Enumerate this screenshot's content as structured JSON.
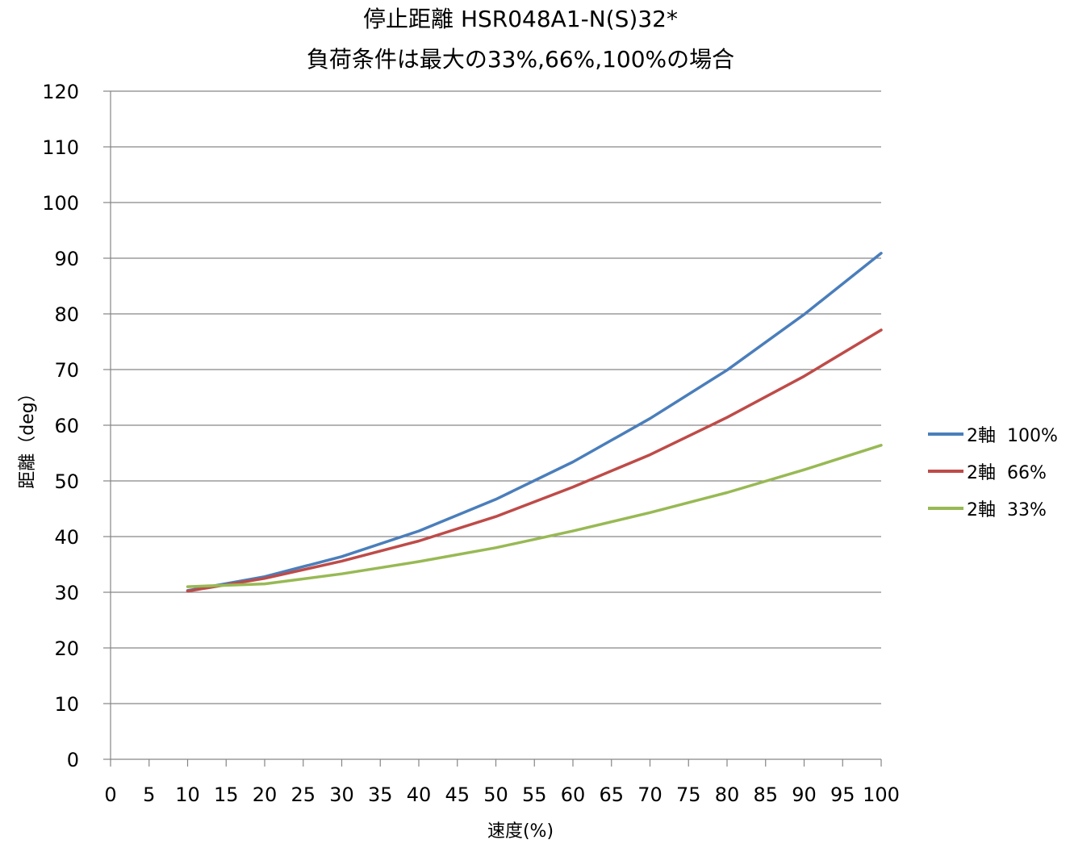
{
  "chart_data": {
    "type": "line",
    "title": "停止距離 HSR048A1-N(S)32*",
    "subtitle": "負荷条件は最大の33%,66%,100%の場合",
    "xlabel": "速度(%)",
    "ylabel": "距離（deg）",
    "xlim": [
      0,
      100
    ],
    "ylim": [
      0,
      120
    ],
    "x_ticks": [
      0,
      5,
      10,
      15,
      20,
      25,
      30,
      35,
      40,
      45,
      50,
      55,
      60,
      65,
      70,
      75,
      80,
      85,
      90,
      95,
      100
    ],
    "y_ticks": [
      0,
      10,
      20,
      30,
      40,
      50,
      60,
      70,
      80,
      90,
      100,
      110,
      120
    ],
    "grid": "horizontal",
    "legend_position": "right",
    "x": [
      10,
      20,
      30,
      40,
      50,
      60,
      70,
      80,
      90,
      100
    ],
    "series": [
      {
        "name": "2軸  100%",
        "color": "#4a7ebb",
        "values": [
          30.3,
          32.8,
          36.4,
          41.0,
          46.7,
          53.4,
          61.2,
          69.9,
          79.9,
          90.9
        ]
      },
      {
        "name": "2軸  66%",
        "color": "#be4b48",
        "values": [
          30.2,
          32.5,
          35.6,
          39.2,
          43.6,
          48.9,
          54.7,
          61.4,
          68.8,
          77.1
        ]
      },
      {
        "name": "2軸  33%",
        "color": "#98b954",
        "values": [
          31.0,
          31.5,
          33.3,
          35.5,
          38.0,
          41.0,
          44.3,
          47.9,
          52.0,
          56.4
        ]
      }
    ]
  }
}
